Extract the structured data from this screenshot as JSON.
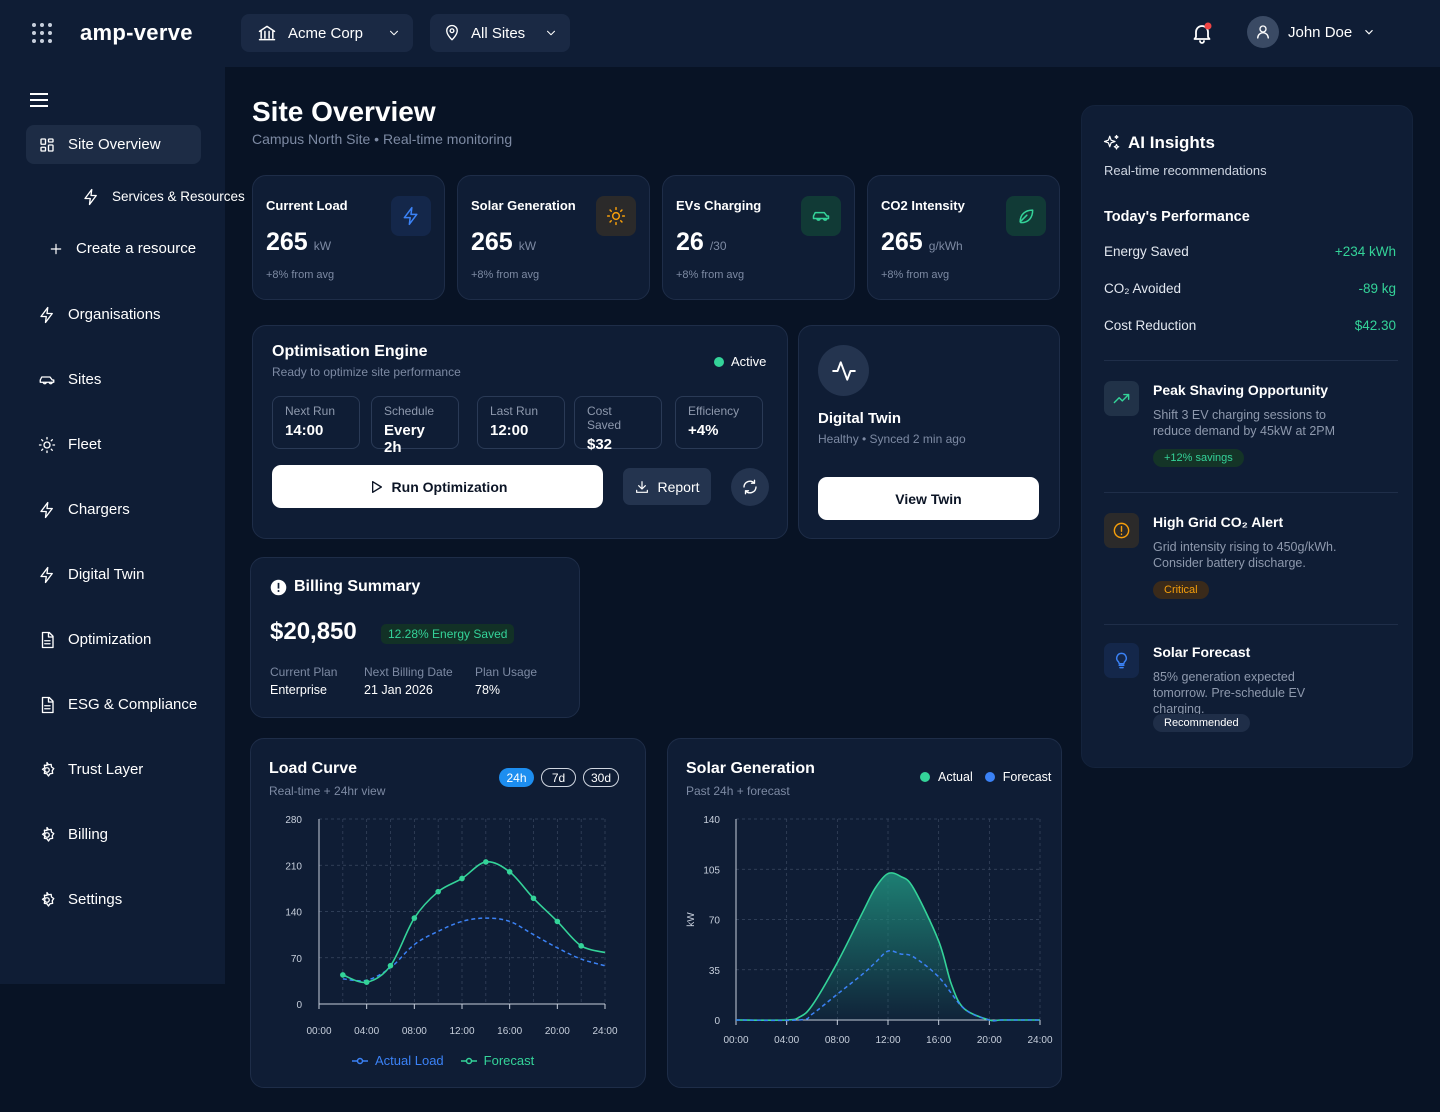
{
  "header": {
    "logo": "amp-verve",
    "org_select": "Acme Corp",
    "site_select": "All Sites",
    "user_name": "John Doe"
  },
  "sidebar": {
    "items": [
      {
        "label": "Site Overview",
        "icon": "grid-icon",
        "active": true
      },
      {
        "label": "Services & Resources",
        "icon": "bolt-icon"
      },
      {
        "label": "Create a resource",
        "icon": "plus-icon"
      },
      {
        "label": "Organisations",
        "icon": "bolt-icon"
      },
      {
        "label": "Sites",
        "icon": "car-icon"
      },
      {
        "label": "Fleet",
        "icon": "sun-icon"
      },
      {
        "label": "Chargers",
        "icon": "bolt-icon"
      },
      {
        "label": "Digital Twin",
        "icon": "bolt-icon"
      },
      {
        "label": "Optimization",
        "icon": "document-icon"
      },
      {
        "label": "ESG & Compliance",
        "icon": "document-icon"
      },
      {
        "label": "Trust Layer",
        "icon": "gear-icon"
      },
      {
        "label": "Billing",
        "icon": "gear-icon"
      },
      {
        "label": "Settings",
        "icon": "gear-icon"
      }
    ]
  },
  "page": {
    "title": "Site Overview",
    "subtitle": "Campus North Site • Real-time monitoring"
  },
  "metrics": [
    {
      "title": "Current Load",
      "value": "265",
      "unit": "kW",
      "sub": "+8% from avg",
      "icon": "bolt-icon",
      "color": "#3b82f6"
    },
    {
      "title": "Solar Generation",
      "value": "265",
      "unit": "kW",
      "sub": "+8% from avg",
      "icon": "sun-icon",
      "color": "#f59e0b"
    },
    {
      "title": "EVs Charging",
      "value": "26",
      "unit": "/30",
      "sub": "+8% from avg",
      "icon": "car-icon",
      "color": "#34d399"
    },
    {
      "title": "CO2 Intensity",
      "value": "265",
      "unit": "g/kWh",
      "sub": "+8% from avg",
      "icon": "leaf-icon",
      "color": "#34d399"
    }
  ],
  "optimisation": {
    "title": "Optimisation Engine",
    "subtitle": "Ready to optimize site performance",
    "status": "Active",
    "stats": [
      {
        "label": "Next Run",
        "value": "14:00"
      },
      {
        "label": "Schedule",
        "value": "Every 2h"
      },
      {
        "label": "Last Run",
        "value": "12:00"
      },
      {
        "label": "Cost Saved",
        "value": "$32"
      },
      {
        "label": "Efficiency",
        "value": "+4%"
      }
    ],
    "run_label": "Run Optimization",
    "report_label": "Report"
  },
  "twin": {
    "title": "Digital Twin",
    "status": "Healthy • Synced 2 min ago",
    "button": "View Twin"
  },
  "billing": {
    "title": "Billing Summary",
    "amount": "$20,850",
    "saved": "12.28% Energy Saved",
    "fields": [
      {
        "label": "Current Plan",
        "value": "Enterprise"
      },
      {
        "label": "Next Billing Date",
        "value": "21 Jan 2026"
      },
      {
        "label": "Plan Usage",
        "value": "78%"
      }
    ]
  },
  "insights": {
    "title": "AI Insights",
    "subtitle": "Real-time recommendations",
    "perf_title": "Today's Performance",
    "perf": [
      {
        "label": "Energy Saved",
        "value": "+234 kWh"
      },
      {
        "label": "CO₂ Avoided",
        "value": "-89 kg"
      },
      {
        "label": "Cost Reduction",
        "value": "$42.30"
      }
    ],
    "items": [
      {
        "title": "Peak Shaving Opportunity",
        "body": "Shift 3 EV charging sessions to reduce demand by 45kW at 2PM",
        "badge": "+12% savings",
        "icon": "trending-up-icon"
      },
      {
        "title": "High Grid CO₂ Alert",
        "body": "Grid intensity rising to 450g/kWh. Consider battery discharge.",
        "badge": "Critical",
        "icon": "alert-icon"
      },
      {
        "title": "Solar Forecast",
        "body": "85% generation expected tomorrow. Pre-schedule EV charging.",
        "badge": "Recommended",
        "icon": "lightbulb-icon"
      }
    ]
  },
  "chart_data": [
    {
      "type": "line",
      "title": "Load Curve",
      "subtitle": "Real-time + 24hr view",
      "ranges": [
        "24h",
        "7d",
        "30d"
      ],
      "selected_range": "24h",
      "x": [
        0,
        2,
        4,
        6,
        8,
        10,
        12,
        14,
        16,
        18,
        20,
        22,
        24
      ],
      "x_tick_labels": [
        "00:00",
        "04:00",
        "08:00",
        "12:00",
        "16:00",
        "20:00",
        "24:00"
      ],
      "ylim": [
        0,
        280
      ],
      "y_ticks": [
        0,
        70,
        140,
        210,
        280
      ],
      "series": [
        {
          "name": "Actual Load",
          "values": [
            68,
            44,
            33,
            58,
            130,
            170,
            190,
            215,
            200,
            160,
            125,
            88,
            78
          ],
          "color": "#34d399",
          "style": "solid"
        },
        {
          "name": "Forecast",
          "values": [
            50,
            38,
            36,
            55,
            90,
            110,
            125,
            130,
            125,
            105,
            85,
            68,
            58
          ],
          "color": "#3b82f6",
          "style": "dashed"
        }
      ],
      "grid": true,
      "legend": "bottom"
    },
    {
      "type": "area",
      "title": "Solar Generation",
      "subtitle": "Past 24h + forecast",
      "x_tick_labels": [
        "00:00",
        "04:00",
        "08:00",
        "12:00",
        "16:00",
        "20:00",
        "24:00"
      ],
      "ylabel": "kW",
      "ylim": [
        0,
        140
      ],
      "y_ticks": [
        0,
        35,
        70,
        105,
        140
      ],
      "series": [
        {
          "name": "Actual",
          "x": [
            0,
            4,
            5,
            6,
            8,
            10,
            11,
            12,
            13,
            14,
            16,
            17,
            18,
            20,
            21,
            24
          ],
          "values": [
            0,
            0,
            2,
            10,
            40,
            75,
            92,
            102,
            100,
            92,
            55,
            25,
            8,
            0,
            0,
            0
          ],
          "color": "#34d399"
        },
        {
          "name": "Forecast",
          "x": [
            0,
            5,
            6,
            8,
            10,
            11,
            12,
            13,
            14,
            16,
            18,
            20,
            21,
            24
          ],
          "values": [
            0,
            0,
            4,
            18,
            32,
            40,
            48,
            46,
            44,
            30,
            8,
            0,
            0,
            0
          ],
          "color": "#3b82f6"
        }
      ],
      "grid": true,
      "legend": "top-right"
    }
  ]
}
